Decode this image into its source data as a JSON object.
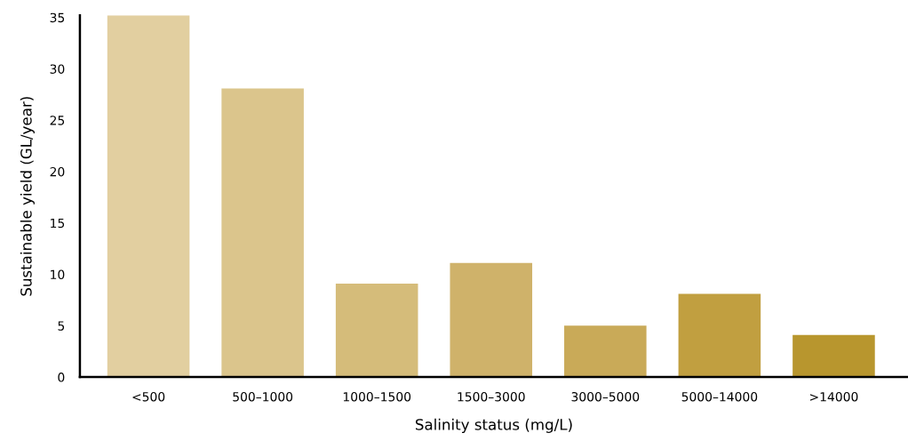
{
  "chart_data": {
    "type": "bar",
    "xlabel": "Salinity status (mg/L)",
    "ylabel": "Sustainable yield (GL/year)",
    "categories": [
      "<500",
      "500–1000",
      "1000–1500",
      "1500–3000",
      "3000–5000",
      "5000–14000",
      ">14000"
    ],
    "values": [
      35.2,
      28.1,
      9.1,
      11.1,
      5.0,
      8.1,
      4.1
    ],
    "colors": [
      "#e2cfa0",
      "#dbc58c",
      "#d5bc7a",
      "#cfb26a",
      "#c9aa58",
      "#c19f40",
      "#b8962e"
    ],
    "ylim": [
      0,
      35.2
    ],
    "yticks": [
      0,
      5,
      10,
      15,
      20,
      25,
      30,
      35
    ],
    "grid": false
  }
}
